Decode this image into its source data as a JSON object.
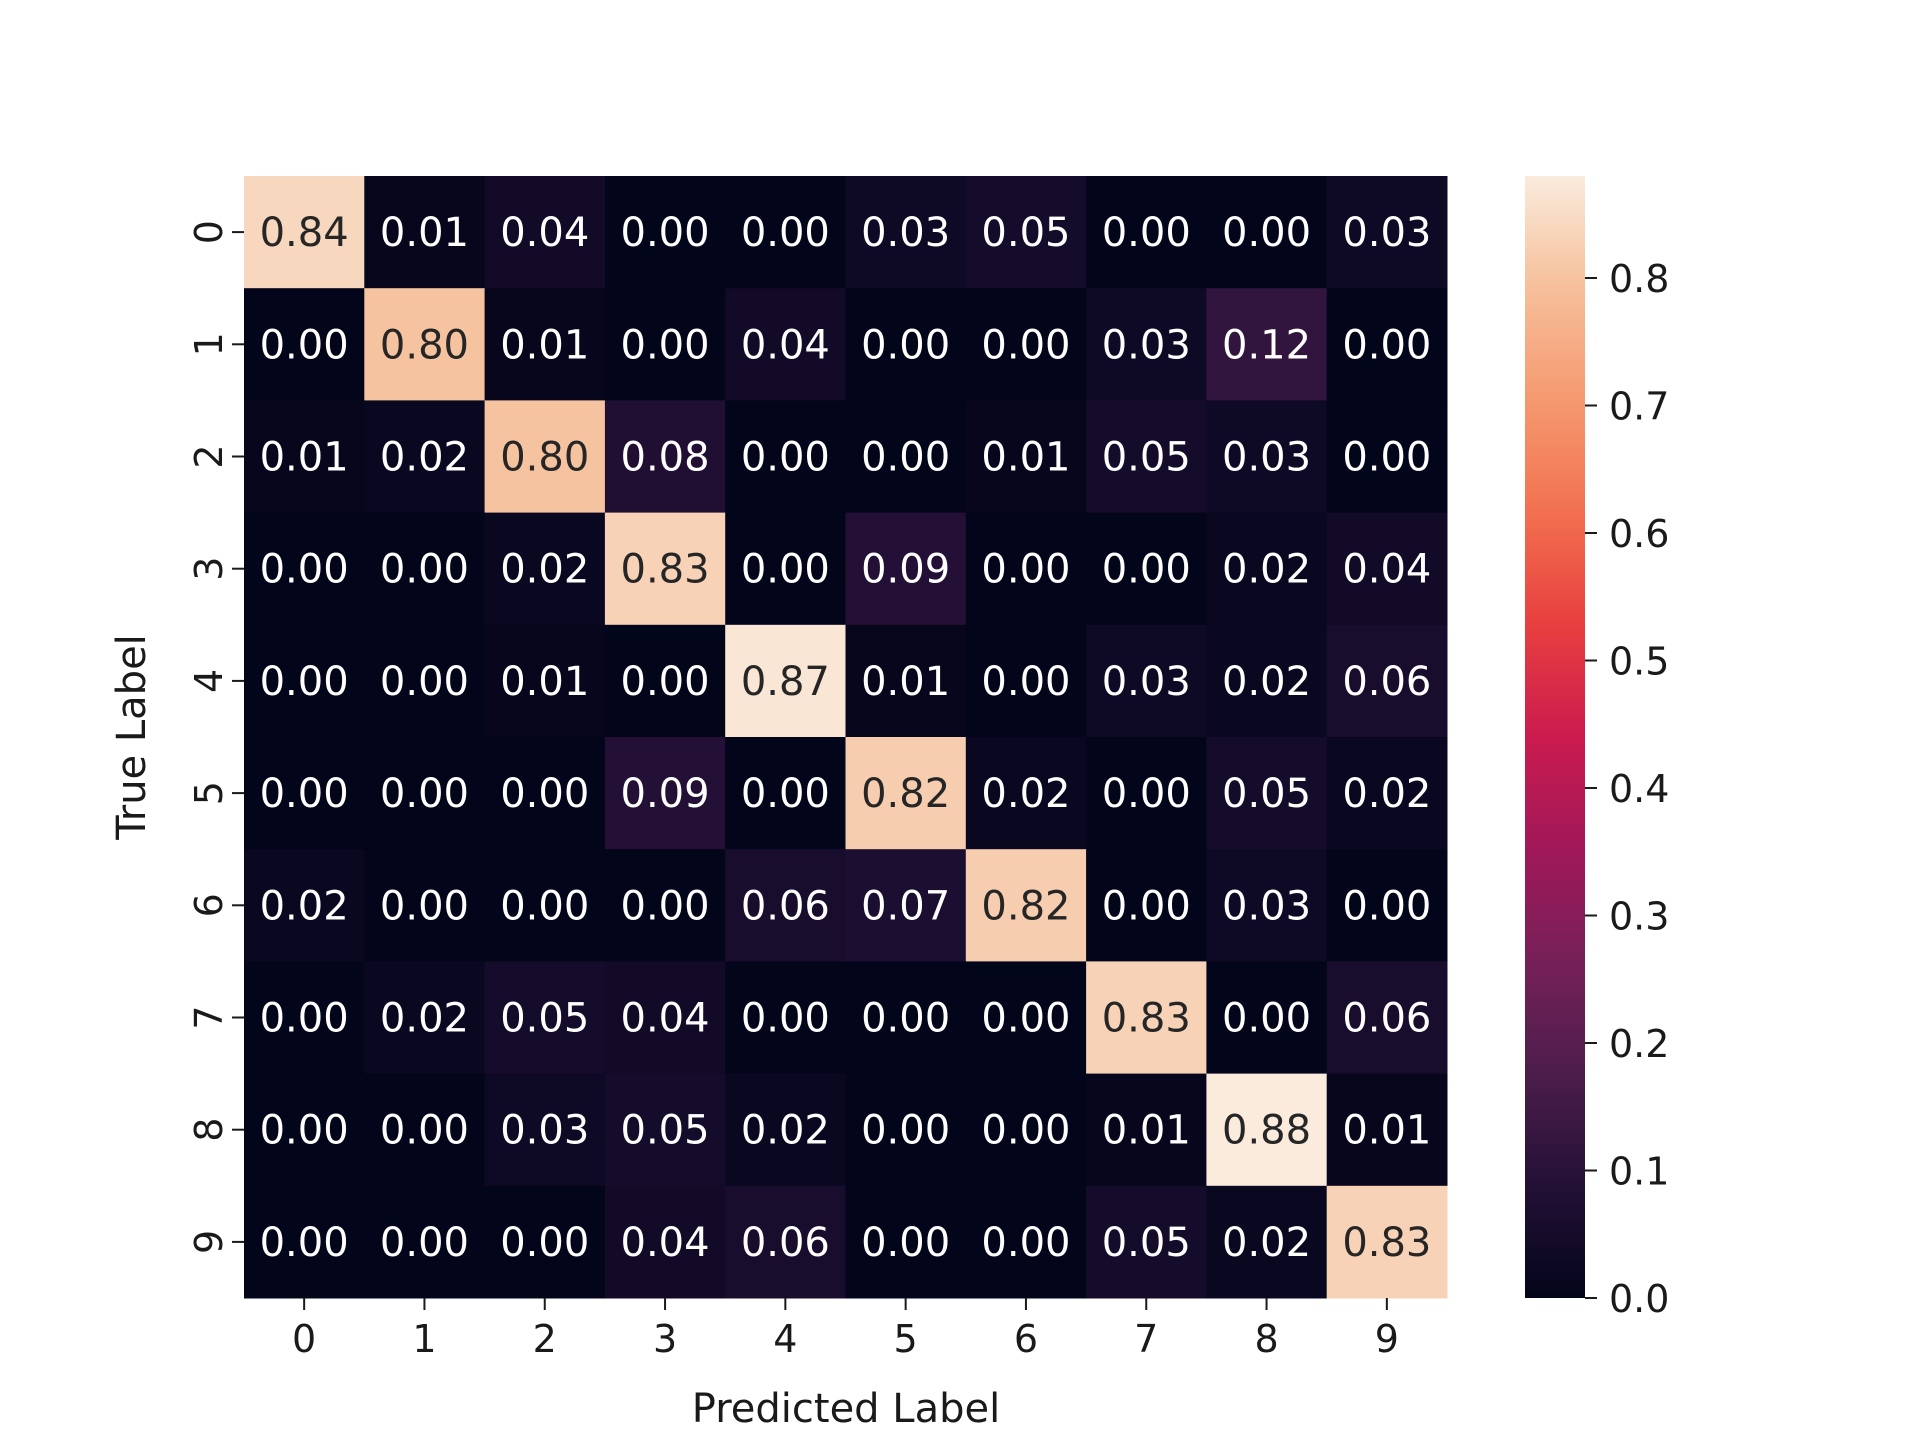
{
  "chart_data": {
    "type": "heatmap",
    "xlabel": "Predicted Label",
    "ylabel": "True Label",
    "x_categories": [
      "0",
      "1",
      "2",
      "3",
      "4",
      "5",
      "6",
      "7",
      "8",
      "9"
    ],
    "y_categories": [
      "0",
      "1",
      "2",
      "3",
      "4",
      "5",
      "6",
      "7",
      "8",
      "9"
    ],
    "values": [
      [
        0.84,
        0.01,
        0.04,
        0.0,
        0.0,
        0.03,
        0.05,
        0.0,
        0.0,
        0.03
      ],
      [
        0.0,
        0.8,
        0.01,
        0.0,
        0.04,
        0.0,
        0.0,
        0.03,
        0.12,
        0.0
      ],
      [
        0.01,
        0.02,
        0.8,
        0.08,
        0.0,
        0.0,
        0.01,
        0.05,
        0.03,
        0.0
      ],
      [
        0.0,
        0.0,
        0.02,
        0.83,
        0.0,
        0.09,
        0.0,
        0.0,
        0.02,
        0.04
      ],
      [
        0.0,
        0.0,
        0.01,
        0.0,
        0.87,
        0.01,
        0.0,
        0.03,
        0.02,
        0.06
      ],
      [
        0.0,
        0.0,
        0.0,
        0.09,
        0.0,
        0.82,
        0.02,
        0.0,
        0.05,
        0.02
      ],
      [
        0.02,
        0.0,
        0.0,
        0.0,
        0.06,
        0.07,
        0.82,
        0.0,
        0.03,
        0.0
      ],
      [
        0.0,
        0.02,
        0.05,
        0.04,
        0.0,
        0.0,
        0.0,
        0.83,
        0.0,
        0.06
      ],
      [
        0.0,
        0.0,
        0.03,
        0.05,
        0.02,
        0.0,
        0.0,
        0.01,
        0.88,
        0.01
      ],
      [
        0.0,
        0.0,
        0.0,
        0.04,
        0.06,
        0.0,
        0.0,
        0.05,
        0.02,
        0.83
      ]
    ],
    "value_format": "0.00",
    "colormap": "rocket",
    "colorbar": {
      "range": [
        0.0,
        0.88
      ],
      "ticks": [
        0.0,
        0.1,
        0.2,
        0.3,
        0.4,
        0.5,
        0.6,
        0.7,
        0.8
      ],
      "tick_labels": [
        "0.0",
        "0.1",
        "0.2",
        "0.3",
        "0.4",
        "0.5",
        "0.6",
        "0.7",
        "0.8"
      ]
    },
    "colors": {
      "low": "#03051a",
      "high": "#faebdd",
      "text_on_dark": "#ffffff",
      "text_on_light": "#262626"
    }
  }
}
